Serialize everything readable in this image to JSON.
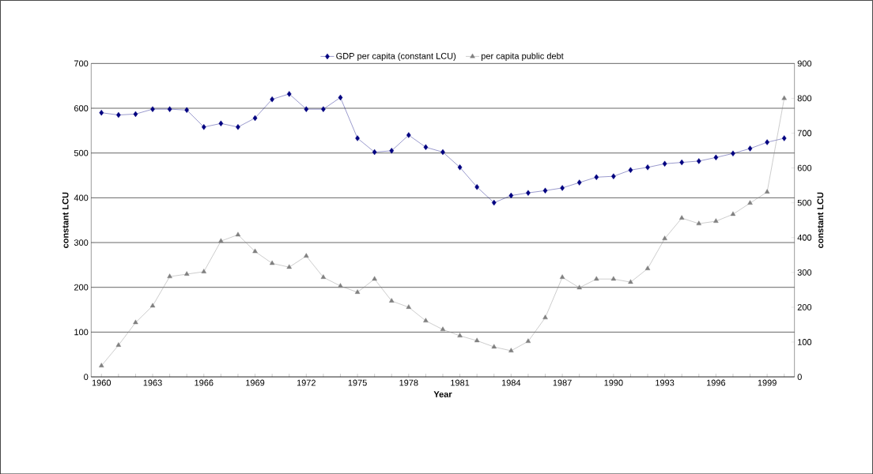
{
  "chart_data": {
    "type": "line",
    "xlabel": "Year",
    "ylabel": "constant LCU",
    "y2label": "constant LCU",
    "categories": [
      "1960",
      null,
      null,
      "1963",
      null,
      null,
      "1966",
      null,
      null,
      "1969",
      null,
      null,
      "1972",
      null,
      null,
      "1975",
      null,
      null,
      "1978",
      null,
      null,
      "1981",
      null,
      null,
      "1984",
      null,
      null,
      "1987",
      null,
      null,
      "1990",
      null,
      null,
      "1993",
      null,
      null,
      "1996",
      null,
      null,
      "1999",
      null
    ],
    "series": [
      {
        "name": "GDP per capita (constant LCU)",
        "color": "#000080",
        "marker": "diamond",
        "values": [
          590,
          585,
          587,
          598,
          598,
          596,
          558,
          566,
          558,
          578,
          620,
          632,
          598,
          598,
          624,
          533,
          502,
          505,
          540,
          513,
          502,
          468,
          424,
          389,
          405,
          411,
          416,
          422,
          434,
          446,
          448,
          462,
          468,
          476,
          479,
          482,
          490,
          499,
          510,
          524,
          533
        ]
      },
      {
        "name": "per capita public debt",
        "color": "#808080",
        "marker": "triangle",
        "axis": "y2",
        "values": [
          32,
          91,
          156,
          204,
          288,
          295,
          302,
          390,
          408,
          360,
          326,
          315,
          347,
          286,
          261,
          243,
          281,
          218,
          200,
          161,
          136,
          118,
          104,
          86,
          75,
          102,
          170,
          286,
          256,
          281,
          281,
          272,
          311,
          397,
          456,
          440,
          447,
          467,
          499,
          531,
          800
        ]
      }
    ],
    "ylim": [
      0,
      700
    ],
    "yticks": [
      0,
      100,
      200,
      300,
      400,
      500,
      600,
      700
    ],
    "y2lim": [
      0,
      900
    ],
    "y2ticks": [
      0,
      100,
      200,
      300,
      400,
      500,
      600,
      700,
      800,
      900
    ],
    "grid": "y",
    "legend": "top",
    "line_style": "solid"
  }
}
